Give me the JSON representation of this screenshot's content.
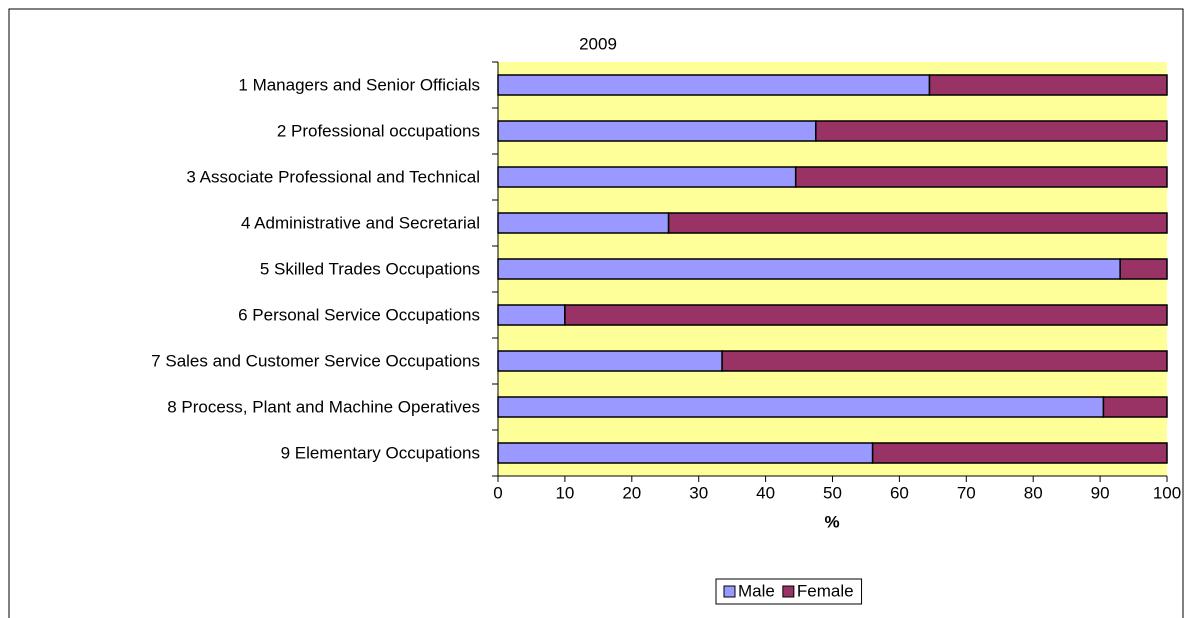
{
  "chart_data": {
    "type": "stacked_barh",
    "title": "2009",
    "x_label": "%",
    "categories": [
      "1 Managers and Senior Officials",
      "2 Professional occupations",
      "3 Associate Professional and Technical",
      "4 Administrative and Secretarial",
      "5 Skilled Trades Occupations",
      "6 Personal Service Occupations",
      "7 Sales and Customer Service Occupations",
      "8 Process, Plant and Machine Operatives",
      "9 Elementary Occupations"
    ],
    "series": [
      {
        "name": "Male",
        "color": "#9999ff",
        "values": [
          64.5,
          47.5,
          44.5,
          25.5,
          93,
          10,
          33.5,
          90.5,
          56
        ]
      },
      {
        "name": "Female",
        "color": "#993366",
        "values": [
          35.5,
          52.5,
          55.5,
          74.5,
          7,
          90,
          66.5,
          9.5,
          44
        ]
      }
    ],
    "xlim": [
      0,
      100
    ],
    "xticks": [
      0,
      10,
      20,
      30,
      40,
      50,
      60,
      70,
      80,
      90,
      100
    ],
    "plot_background": "#ffff99",
    "legend": "bottom"
  }
}
